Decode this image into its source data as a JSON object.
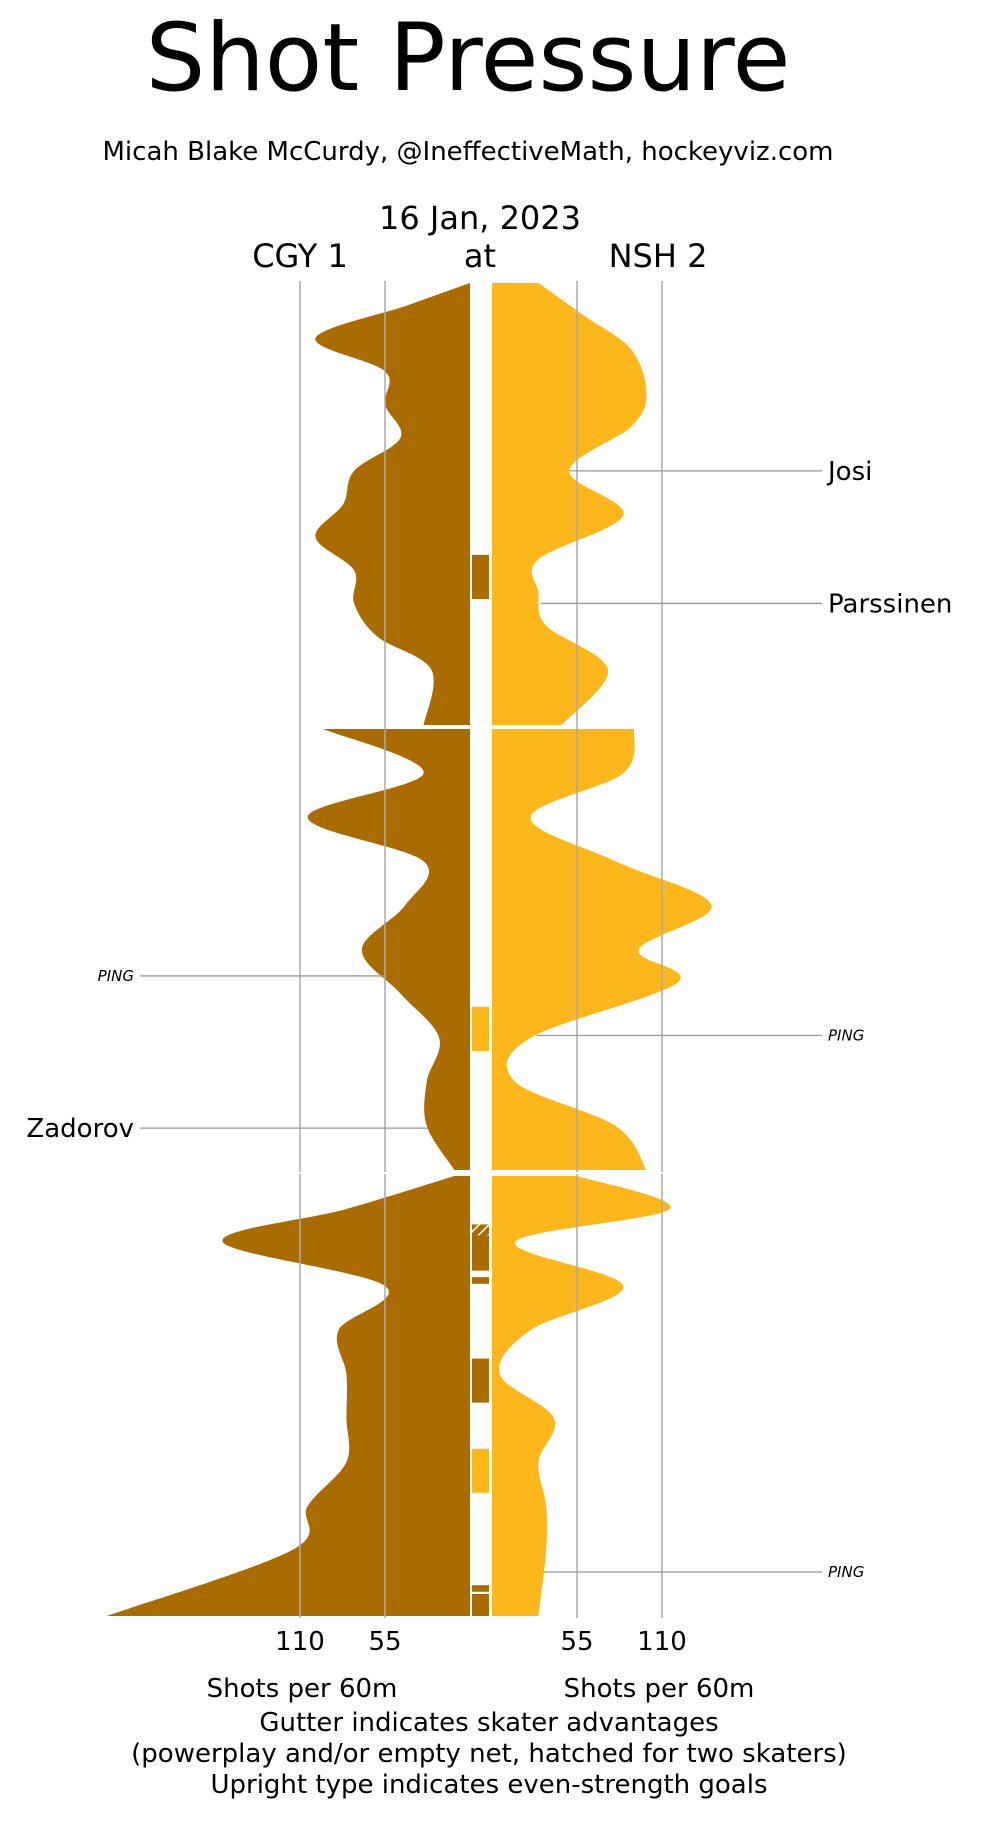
{
  "title": "Shot Pressure",
  "subtitle": "Micah Blake McCurdy, @IneffectiveMath, hockeyviz.com",
  "date": "16 Jan, 2023",
  "away_team": "CGY 1",
  "at_label": "at",
  "home_team": "NSH 2",
  "footer": {
    "line1": "Gutter indicates skater advantages",
    "line2": "(powerplay and/or empty net, hatched for two skaters)",
    "line3": "Upright type indicates even-strength goals"
  },
  "colors": {
    "away": "#AA6C00",
    "home": "#FDB71A",
    "grid": "#aaaaaa"
  },
  "chart_data": {
    "type": "area",
    "orientation": "vertical mirrored",
    "periods": [
      1,
      2,
      3
    ],
    "minutes_per_period": 20,
    "x_unit": "Shots per 60m",
    "away": {
      "team": "CGY 1",
      "xlabel": "Shots per 60m",
      "ticks": [
        110,
        55
      ],
      "series": [
        {
          "min": 0,
          "value": 0
        },
        {
          "min": 1,
          "value": 40
        },
        {
          "min": 2.5,
          "value": 100
        },
        {
          "min": 4,
          "value": 55
        },
        {
          "min": 5.5,
          "value": 55
        },
        {
          "min": 7,
          "value": 45
        },
        {
          "min": 8.5,
          "value": 75
        },
        {
          "min": 10,
          "value": 82
        },
        {
          "min": 11.5,
          "value": 100
        },
        {
          "min": 13,
          "value": 75
        },
        {
          "min": 14.5,
          "value": 75
        },
        {
          "min": 16,
          "value": 60
        },
        {
          "min": 17.5,
          "value": 25
        },
        {
          "min": 20,
          "value": 30
        },
        {
          "min": 20,
          "value": 95
        },
        {
          "min": 22,
          "value": 30
        },
        {
          "min": 24,
          "value": 105
        },
        {
          "min": 26,
          "value": 30
        },
        {
          "min": 28,
          "value": 42
        },
        {
          "min": 30,
          "value": 70
        },
        {
          "min": 32,
          "value": 45
        },
        {
          "min": 34,
          "value": 20
        },
        {
          "min": 36,
          "value": 28
        },
        {
          "min": 38,
          "value": 28
        },
        {
          "min": 40,
          "value": 10
        },
        {
          "min": 40,
          "value": 10
        },
        {
          "min": 41.5,
          "value": 80
        },
        {
          "min": 43,
          "value": 160
        },
        {
          "min": 45,
          "value": 55
        },
        {
          "min": 47,
          "value": 85
        },
        {
          "min": 49,
          "value": 80
        },
        {
          "min": 51,
          "value": 80
        },
        {
          "min": 53,
          "value": 80
        },
        {
          "min": 55,
          "value": 105
        },
        {
          "min": 57,
          "value": 115
        },
        {
          "min": 60,
          "value": 235
        }
      ]
    },
    "home": {
      "team": "NSH 2",
      "xlabel": "Shots per 60m",
      "ticks": [
        55,
        110
      ],
      "series": [
        {
          "min": 0,
          "value": 30
        },
        {
          "min": 1.5,
          "value": 60
        },
        {
          "min": 3,
          "value": 90
        },
        {
          "min": 5,
          "value": 100
        },
        {
          "min": 6.5,
          "value": 90
        },
        {
          "min": 8.5,
          "value": 50
        },
        {
          "min": 10.5,
          "value": 85
        },
        {
          "min": 12.5,
          "value": 30
        },
        {
          "min": 14,
          "value": 30
        },
        {
          "min": 15.5,
          "value": 35
        },
        {
          "min": 17.5,
          "value": 75
        },
        {
          "min": 20,
          "value": 45
        },
        {
          "min": 20,
          "value": 92
        },
        {
          "min": 22,
          "value": 85
        },
        {
          "min": 24,
          "value": 25
        },
        {
          "min": 26,
          "value": 80
        },
        {
          "min": 28,
          "value": 142
        },
        {
          "min": 30,
          "value": 95
        },
        {
          "min": 31.5,
          "value": 120
        },
        {
          "min": 34,
          "value": 25
        },
        {
          "min": 36,
          "value": 15
        },
        {
          "min": 38,
          "value": 80
        },
        {
          "min": 40,
          "value": 100
        },
        {
          "min": 40,
          "value": 55
        },
        {
          "min": 41.5,
          "value": 115
        },
        {
          "min": 43,
          "value": 15
        },
        {
          "min": 45,
          "value": 85
        },
        {
          "min": 47,
          "value": 25
        },
        {
          "min": 49,
          "value": 5
        },
        {
          "min": 51,
          "value": 40
        },
        {
          "min": 53,
          "value": 30
        },
        {
          "min": 55,
          "value": 35
        },
        {
          "min": 57,
          "value": 35
        },
        {
          "min": 60,
          "value": 30
        }
      ]
    },
    "gutter": [
      {
        "team": "away",
        "start": 12.3,
        "end": 14.3,
        "hatched": false
      },
      {
        "team": "home",
        "start": 32.6,
        "end": 34.6,
        "hatched": false
      },
      {
        "team": "away",
        "start": 42.2,
        "end": 42.7,
        "hatched": true
      },
      {
        "team": "away",
        "start": 42.7,
        "end": 44.3,
        "hatched": false
      },
      {
        "team": "away",
        "start": 44.6,
        "end": 44.9,
        "hatched": false
      },
      {
        "team": "away",
        "start": 48.3,
        "end": 50.3,
        "hatched": false
      },
      {
        "team": "home",
        "start": 52.4,
        "end": 54.4,
        "hatched": false
      },
      {
        "team": "away",
        "start": 58.6,
        "end": 58.9,
        "hatched": false
      },
      {
        "team": "away",
        "start": 59.0,
        "end": 60.0,
        "hatched": false
      }
    ],
    "goals": [
      {
        "team": "home",
        "minute": 8.5,
        "label": "Josi",
        "even_strength": true
      },
      {
        "team": "home",
        "minute": 14.5,
        "label": "Parssinen",
        "even_strength": true
      },
      {
        "team": "away",
        "minute": 31.2,
        "label": "PING",
        "even_strength": false
      },
      {
        "team": "home",
        "minute": 33.9,
        "label": "PING",
        "even_strength": false
      },
      {
        "team": "away",
        "minute": 38.1,
        "label": "Zadorov",
        "even_strength": true
      },
      {
        "team": "home",
        "minute": 58.0,
        "label": "PING",
        "even_strength": false
      }
    ]
  }
}
